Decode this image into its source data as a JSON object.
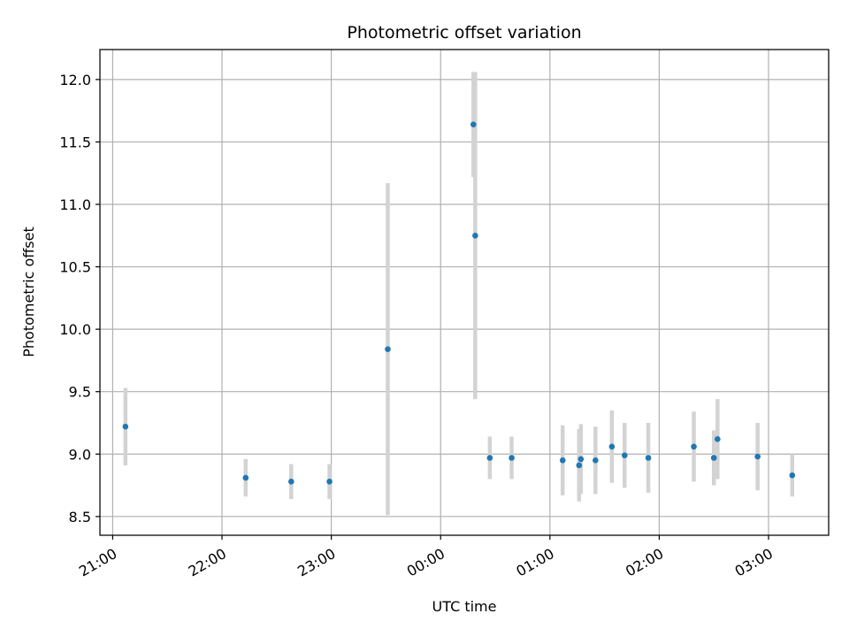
{
  "chart_data": {
    "type": "scatter",
    "title": "Photometric offset variation",
    "xlabel": "UTC time",
    "ylabel": "Photometric offset",
    "xlim": [
      "20:53",
      "03:33"
    ],
    "ylim": [
      8.35,
      12.24
    ],
    "x_tick_labels": [
      "21:00",
      "22:00",
      "23:00",
      "00:00",
      "01:00",
      "02:00",
      "03:00"
    ],
    "y_tick_labels": [
      "8.5",
      "9.0",
      "9.5",
      "10.0",
      "10.5",
      "11.0",
      "11.5",
      "12.0"
    ],
    "grid": true,
    "point_color": "#1f77b4",
    "errorbar_color": "#d3d3d3",
    "points": [
      {
        "x": "21:07",
        "y": 9.22,
        "err": 0.31
      },
      {
        "x": "22:13",
        "y": 8.81,
        "err": 0.15
      },
      {
        "x": "22:38",
        "y": 8.78,
        "err": 0.14
      },
      {
        "x": "22:59",
        "y": 8.78,
        "err": 0.14
      },
      {
        "x": "23:31",
        "y": 9.84,
        "err": 1.33
      },
      {
        "x": "00:18",
        "y": 11.64,
        "err": 0.42
      },
      {
        "x": "00:19",
        "y": 10.75,
        "err": 1.31
      },
      {
        "x": "00:27",
        "y": 8.97,
        "err": 0.17
      },
      {
        "x": "00:39",
        "y": 8.97,
        "err": 0.17
      },
      {
        "x": "01:07",
        "y": 8.95,
        "err": 0.28
      },
      {
        "x": "01:16",
        "y": 8.91,
        "err": 0.29
      },
      {
        "x": "01:17",
        "y": 8.96,
        "err": 0.28
      },
      {
        "x": "01:25",
        "y": 8.95,
        "err": 0.27
      },
      {
        "x": "01:34",
        "y": 9.06,
        "err": 0.29
      },
      {
        "x": "01:41",
        "y": 8.99,
        "err": 0.26
      },
      {
        "x": "01:54",
        "y": 8.97,
        "err": 0.28
      },
      {
        "x": "02:19",
        "y": 9.06,
        "err": 0.28
      },
      {
        "x": "02:30",
        "y": 8.97,
        "err": 0.22
      },
      {
        "x": "02:32",
        "y": 9.12,
        "err": 0.32
      },
      {
        "x": "02:54",
        "y": 8.98,
        "err": 0.27
      },
      {
        "x": "03:13",
        "y": 8.83,
        "err": 0.17
      }
    ]
  }
}
